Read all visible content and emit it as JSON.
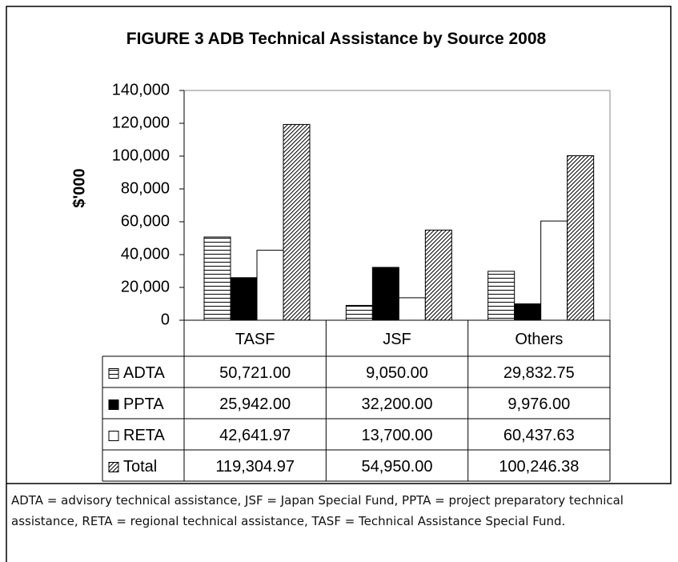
{
  "chart_data": {
    "type": "bar",
    "title": "FIGURE 3 ADB Technical Assistance by Source 2008",
    "ylabel": "$'000",
    "categories": [
      "TASF",
      "JSF",
      "Others"
    ],
    "series": [
      {
        "name": "ADTA",
        "color": "#000000",
        "pattern": "horizontal",
        "values": [
          50721,
          9050,
          29832.75
        ],
        "value_labels": [
          "50,721.00",
          "9,050.00",
          "29,832.75"
        ]
      },
      {
        "name": "PPTA",
        "color": "#000000",
        "pattern": "solid",
        "values": [
          25942,
          32200,
          9976
        ],
        "value_labels": [
          "25,942.00",
          "32,200.00",
          "9,976.00"
        ]
      },
      {
        "name": "RETA",
        "color": "#000000",
        "pattern": "none",
        "values": [
          42641.97,
          13700,
          60437.63
        ],
        "value_labels": [
          "42,641.97",
          "13,700.00",
          "60,437.63"
        ]
      },
      {
        "name": "Total",
        "color": "#000000",
        "pattern": "diagonal",
        "values": [
          119304.97,
          54950,
          100246.38
        ],
        "value_labels": [
          "119,304.97",
          "54,950.00",
          "100,246.38"
        ]
      }
    ],
    "ylim": [
      0,
      140000
    ],
    "yticks": [
      0,
      {
        "value": 20000,
        "label": "20,000"
      },
      {
        "value": 40000,
        "label": "40,000"
      },
      {
        "value": 60000,
        "label": "60,000"
      },
      {
        "value": 80000,
        "label": "80,000"
      },
      {
        "value": 100000,
        "label": "100,000"
      },
      {
        "value": 120000,
        "label": "120,000"
      },
      {
        "value": 140000,
        "label": "140,000"
      }
    ],
    "grid": false
  },
  "note": "ADTA = advisory technical assistance, JSF = Japan Special Fund, PPTA = project preparatory technical assistance, RETA = regional technical assistance, TASF = Technical Assistance Special Fund."
}
